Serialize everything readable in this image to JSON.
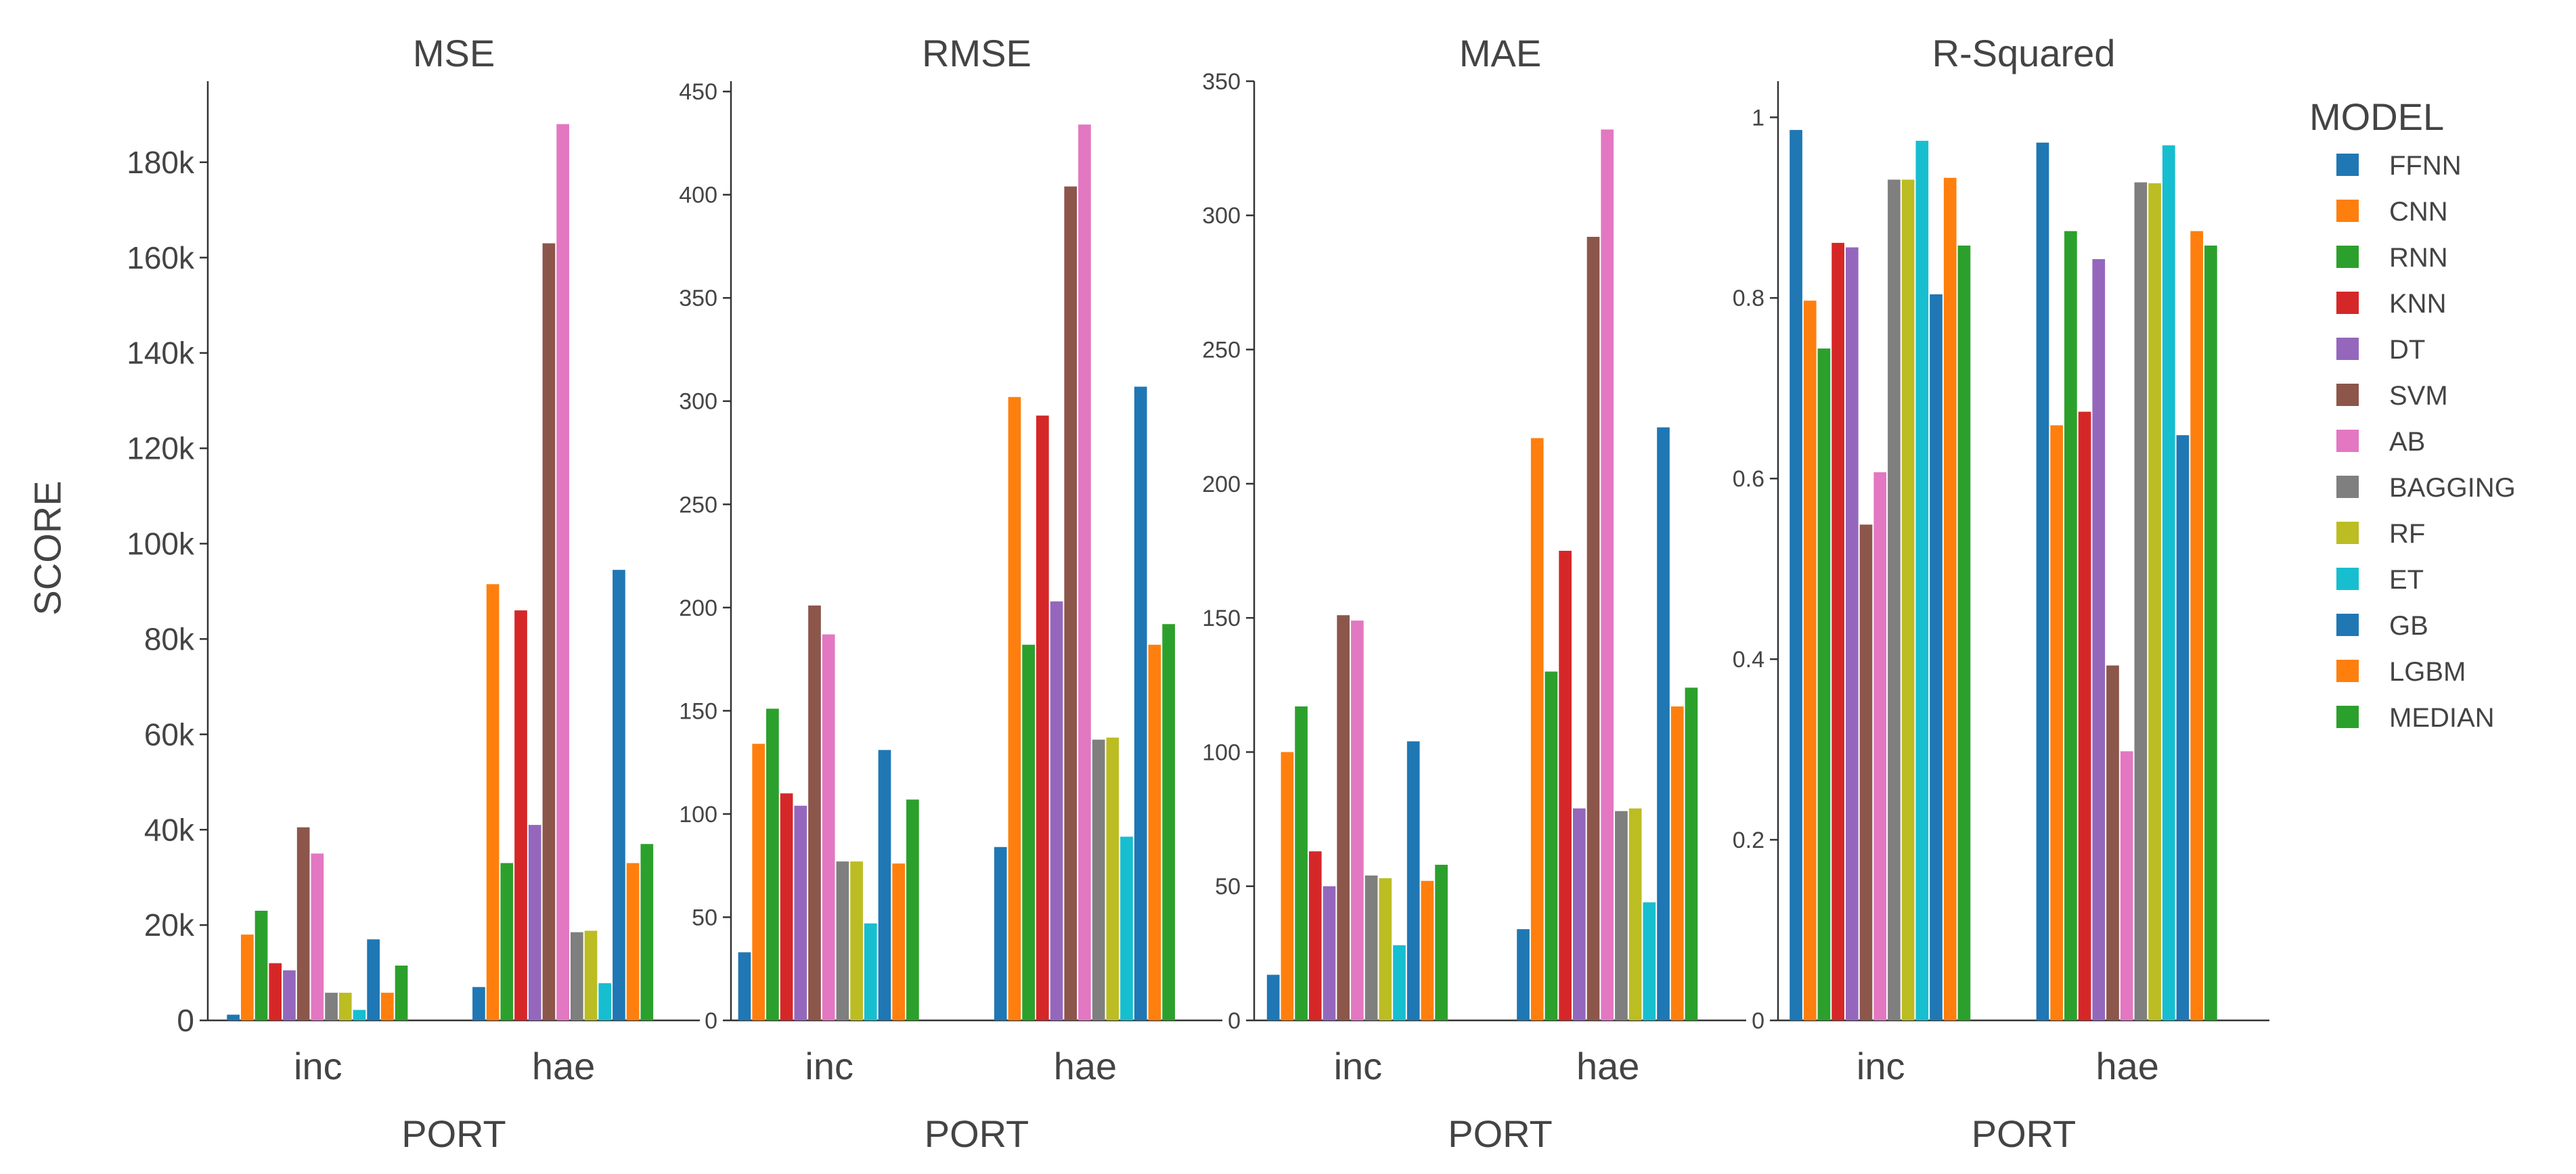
{
  "y_axis_title": "SCORE",
  "legend": {
    "title": "MODEL",
    "items": [
      {
        "name": "FFNN",
        "color": "#1f77b4"
      },
      {
        "name": "CNN",
        "color": "#ff7f0e"
      },
      {
        "name": "RNN",
        "color": "#2ca02c"
      },
      {
        "name": "KNN",
        "color": "#d62728"
      },
      {
        "name": "DT",
        "color": "#9467bd"
      },
      {
        "name": "SVM",
        "color": "#8c564b"
      },
      {
        "name": "AB",
        "color": "#e377c2"
      },
      {
        "name": "BAGGING",
        "color": "#7f7f7f"
      },
      {
        "name": "RF",
        "color": "#bcbd22"
      },
      {
        "name": "ET",
        "color": "#17becf"
      },
      {
        "name": "GB",
        "color": "#1f77b4"
      },
      {
        "name": "LGBM",
        "color": "#ff7f0e"
      },
      {
        "name": "MEDIAN",
        "color": "#2ca02c"
      }
    ]
  },
  "chart_data": [
    {
      "type": "bar",
      "title": "MSE",
      "xlabel": "PORT",
      "ylabel": "SCORE",
      "categories": [
        "inc",
        "hae"
      ],
      "ylim": [
        0,
        197000
      ],
      "yticks": [
        0,
        20000,
        40000,
        60000,
        80000,
        100000,
        120000,
        140000,
        160000,
        180000
      ],
      "ytick_labels": [
        "0",
        "20k",
        "40k",
        "60k",
        "80k",
        "100k",
        "120k",
        "140k",
        "160k",
        "180k"
      ],
      "series": [
        {
          "name": "FFNN",
          "values": [
            1200,
            7000
          ]
        },
        {
          "name": "CNN",
          "values": [
            18000,
            91500
          ]
        },
        {
          "name": "RNN",
          "values": [
            23000,
            33000
          ]
        },
        {
          "name": "KNN",
          "values": [
            12000,
            86000
          ]
        },
        {
          "name": "DT",
          "values": [
            10500,
            41000
          ]
        },
        {
          "name": "SVM",
          "values": [
            40500,
            163000
          ]
        },
        {
          "name": "AB",
          "values": [
            35000,
            188000
          ]
        },
        {
          "name": "BAGGING",
          "values": [
            5800,
            18500
          ]
        },
        {
          "name": "RF",
          "values": [
            5800,
            18800
          ]
        },
        {
          "name": "ET",
          "values": [
            2200,
            7800
          ]
        },
        {
          "name": "GB",
          "values": [
            17000,
            94500
          ]
        },
        {
          "name": "LGBM",
          "values": [
            5800,
            33000
          ]
        },
        {
          "name": "MEDIAN",
          "values": [
            11500,
            37000
          ]
        }
      ]
    },
    {
      "type": "bar",
      "title": "RMSE",
      "xlabel": "PORT",
      "ylabel": "",
      "categories": [
        "inc",
        "hae"
      ],
      "ylim": [
        0,
        455
      ],
      "yticks": [
        0,
        50,
        100,
        150,
        200,
        250,
        300,
        350,
        400,
        450
      ],
      "ytick_labels": [
        "0",
        "50",
        "100",
        "150",
        "200",
        "250",
        "300",
        "350",
        "400",
        "450"
      ],
      "series": [
        {
          "name": "FFNN",
          "values": [
            33,
            84
          ]
        },
        {
          "name": "CNN",
          "values": [
            134,
            302
          ]
        },
        {
          "name": "RNN",
          "values": [
            151,
            182
          ]
        },
        {
          "name": "KNN",
          "values": [
            110,
            293
          ]
        },
        {
          "name": "DT",
          "values": [
            104,
            203
          ]
        },
        {
          "name": "SVM",
          "values": [
            201,
            404
          ]
        },
        {
          "name": "AB",
          "values": [
            187,
            434
          ]
        },
        {
          "name": "BAGGING",
          "values": [
            77,
            136
          ]
        },
        {
          "name": "RF",
          "values": [
            77,
            137
          ]
        },
        {
          "name": "ET",
          "values": [
            47,
            89
          ]
        },
        {
          "name": "GB",
          "values": [
            131,
            307
          ]
        },
        {
          "name": "LGBM",
          "values": [
            76,
            182
          ]
        },
        {
          "name": "MEDIAN",
          "values": [
            107,
            192
          ]
        }
      ]
    },
    {
      "type": "bar",
      "title": "MAE",
      "xlabel": "PORT",
      "ylabel": "",
      "categories": [
        "inc",
        "hae"
      ],
      "ylim": [
        0,
        350
      ],
      "yticks": [
        0,
        50,
        100,
        150,
        200,
        250,
        300,
        350
      ],
      "ytick_labels": [
        "0",
        "50",
        "100",
        "150",
        "200",
        "250",
        "300",
        "350"
      ],
      "series": [
        {
          "name": "FFNN",
          "values": [
            17,
            34
          ]
        },
        {
          "name": "CNN",
          "values": [
            100,
            217
          ]
        },
        {
          "name": "RNN",
          "values": [
            117,
            130
          ]
        },
        {
          "name": "KNN",
          "values": [
            63,
            175
          ]
        },
        {
          "name": "DT",
          "values": [
            50,
            79
          ]
        },
        {
          "name": "SVM",
          "values": [
            151,
            292
          ]
        },
        {
          "name": "AB",
          "values": [
            149,
            332
          ]
        },
        {
          "name": "BAGGING",
          "values": [
            54,
            78
          ]
        },
        {
          "name": "RF",
          "values": [
            53,
            79
          ]
        },
        {
          "name": "ET",
          "values": [
            28,
            44
          ]
        },
        {
          "name": "GB",
          "values": [
            104,
            221
          ]
        },
        {
          "name": "LGBM",
          "values": [
            52,
            117
          ]
        },
        {
          "name": "MEDIAN",
          "values": [
            58,
            124
          ]
        }
      ]
    },
    {
      "type": "bar",
      "title": "R-Squared",
      "xlabel": "PORT",
      "ylabel": "",
      "categories": [
        "inc",
        "hae"
      ],
      "ylim": [
        0,
        1.04
      ],
      "yticks": [
        0,
        0.2,
        0.4,
        0.6,
        0.8,
        1
      ],
      "ytick_labels": [
        "0",
        "0.2",
        "0.4",
        "0.6",
        "0.8",
        "1"
      ],
      "series": [
        {
          "name": "FFNN",
          "values": [
            0.986,
            0.972
          ]
        },
        {
          "name": "CNN",
          "values": [
            0.797,
            0.659
          ]
        },
        {
          "name": "RNN",
          "values": [
            0.744,
            0.874
          ]
        },
        {
          "name": "KNN",
          "values": [
            0.861,
            0.674
          ]
        },
        {
          "name": "DT",
          "values": [
            0.856,
            0.843
          ]
        },
        {
          "name": "SVM",
          "values": [
            0.549,
            0.393
          ]
        },
        {
          "name": "AB",
          "values": [
            0.607,
            0.298
          ]
        },
        {
          "name": "BAGGING",
          "values": [
            0.931,
            0.928
          ]
        },
        {
          "name": "RF",
          "values": [
            0.931,
            0.927
          ]
        },
        {
          "name": "ET",
          "values": [
            0.974,
            0.969
          ]
        },
        {
          "name": "GB",
          "values": [
            0.804,
            0.648
          ]
        },
        {
          "name": "LGBM",
          "values": [
            0.933,
            0.874
          ]
        },
        {
          "name": "MEDIAN",
          "values": [
            0.858,
            0.858
          ]
        }
      ]
    }
  ]
}
